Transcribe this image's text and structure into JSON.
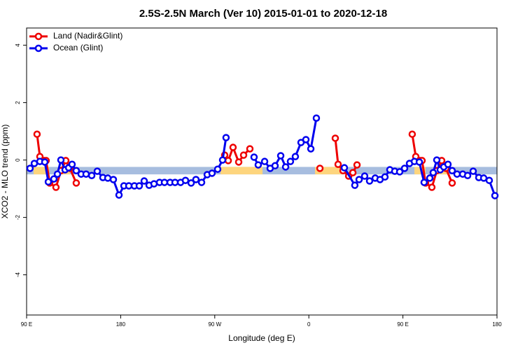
{
  "chart_data": {
    "type": "line",
    "title": "2.5S-2.5N March (Ver 10)   2015-01-01 to 2020-12-18",
    "x_label": "Longitude (deg E)",
    "y_label": "XCO2 - MLO trend (ppm)",
    "xlim": [
      90,
      540
    ],
    "ylim": [
      -5.4,
      4.6
    ],
    "xticks": [
      {
        "value": 90,
        "label": "90 E"
      },
      180,
      {
        "value": 270,
        "label": "90 W"
      },
      {
        "value": 360,
        "label": "0"
      },
      {
        "value": 450,
        "label": "90 E"
      },
      {
        "value": 540,
        "label": "180"
      }
    ],
    "yticks": [
      -4,
      -2,
      0,
      2,
      4
    ],
    "legend": "top-left",
    "band": {
      "color": "#a7bddf",
      "range": [
        -0.5,
        -0.24
      ]
    },
    "land_bands": {
      "color": "#fdd57e",
      "ranges": [
        [
          96.7,
          111.4
        ],
        [
          121.5,
          131.5
        ],
        [
          275.5,
          315.7
        ],
        [
          365.9,
          392.7
        ],
        [
          461,
          471.7
        ],
        [
          481.7,
          493.1
        ]
      ]
    },
    "series": [
      {
        "name": "Land (Nadir&Glint)",
        "color": "#ee0000",
        "x": [
          100.0,
          102.7,
          106.7,
          108.7,
          112.1,
          118.1,
          122.8,
          127.5,
          131.5,
          137.5,
          null,
          279.5,
          282.9,
          287.5,
          292.9,
          297.6,
          303.6,
          null,
          370.6,
          null,
          385.3,
          388.0,
          392.7,
          398.1,
          402.1,
          406.1,
          null,
          458.9,
          462.3,
          466.3,
          468.3,
          471.7,
          477.7,
          482.4,
          487.1,
          491.1,
          497.1
        ],
        "values": [
          0.9,
          0.12,
          -0.02,
          -0.02,
          -0.8,
          -0.95,
          -0.37,
          -0.02,
          -0.29,
          -0.8,
          null,
          0.17,
          -0.02,
          0.44,
          -0.07,
          0.17,
          0.39,
          null,
          -0.29,
          null,
          0.76,
          -0.15,
          -0.37,
          -0.56,
          -0.44,
          -0.17,
          null,
          0.9,
          0.12,
          -0.02,
          -0.02,
          -0.8,
          -0.95,
          -0.37,
          -0.02,
          -0.29,
          -0.8
        ]
      },
      {
        "name": "Ocean (Glint)",
        "color": "#0000ee",
        "x": [
          93.3,
          97.4,
          102.7,
          107.4,
          110.8,
          116.1,
          119.5,
          122.8,
          126.8,
          130.2,
          133.5,
          137.5,
          142.2,
          146.9,
          152.3,
          157.6,
          163.0,
          167.7,
          173.0,
          178.4,
          183.1,
          187.8,
          193.1,
          197.8,
          202.5,
          207.2,
          211.9,
          217.2,
          221.9,
          227.3,
          232.0,
          237.3,
          242.0,
          247.4,
          252.0,
          257.4,
          262.8,
          267.4,
          272.8,
          277.5,
          280.8,
          null,
          307.6,
          311.6,
          317.7,
          323.0,
          327.7,
          333.1,
          337.8,
          342.4,
          347.1,
          352.5,
          357.2,
          361.9,
          367.2,
          null,
          394.0,
          404.0,
          408.1,
          413.4,
          418.1,
          423.5,
          428.1,
          432.8,
          437.5,
          442.2,
          446.9,
          451.6,
          456.3,
          461.0,
          465.7,
          470.3,
          475.7,
          479.0,
          482.4,
          485.7,
          489.1,
          493.1,
          497.1,
          501.8,
          507.2,
          511.9,
          517.2,
          522.6,
          527.3,
          532.6,
          538.0
        ],
        "values": [
          -0.29,
          -0.12,
          -0.05,
          -0.07,
          -0.76,
          -0.66,
          -0.49,
          0.0,
          -0.34,
          -0.27,
          -0.15,
          -0.37,
          -0.49,
          -0.49,
          -0.54,
          -0.39,
          -0.61,
          -0.63,
          -0.68,
          -1.22,
          -0.9,
          -0.9,
          -0.9,
          -0.9,
          -0.73,
          -0.88,
          -0.83,
          -0.78,
          -0.78,
          -0.78,
          -0.78,
          -0.78,
          -0.71,
          -0.8,
          -0.68,
          -0.78,
          -0.51,
          -0.46,
          -0.32,
          0.0,
          0.78,
          null,
          0.1,
          -0.17,
          -0.05,
          -0.29,
          -0.2,
          0.15,
          -0.24,
          -0.05,
          0.12,
          0.61,
          0.71,
          0.39,
          1.46,
          null,
          -0.27,
          -0.88,
          -0.68,
          -0.56,
          -0.73,
          -0.63,
          -0.68,
          -0.59,
          -0.34,
          -0.39,
          -0.41,
          -0.29,
          -0.12,
          -0.05,
          -0.07,
          -0.78,
          -0.63,
          -0.44,
          0.0,
          -0.34,
          -0.24,
          -0.15,
          -0.37,
          -0.49,
          -0.49,
          -0.54,
          -0.39,
          -0.61,
          -0.63,
          -0.71,
          -1.24
        ]
      }
    ]
  }
}
